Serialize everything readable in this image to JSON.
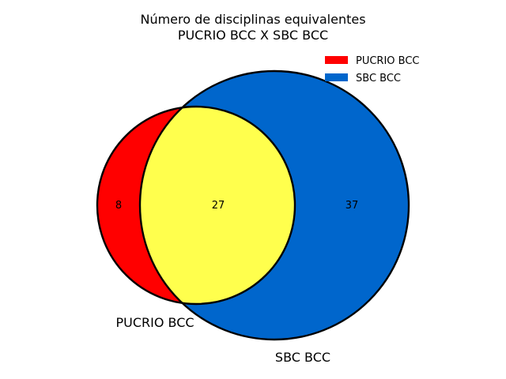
{
  "title": {
    "line1": "Número de disciplinas equivalentes",
    "line2": "PUCRIO BCC X SBC BCC"
  },
  "colors": {
    "set_a": "#ff0000",
    "set_b": "#0066cc",
    "intersection": "#ffff4d",
    "outline": "#000000"
  },
  "sets": [
    {
      "name": "PUCRIO BCC",
      "color": "#ff0000",
      "only_count": "8"
    },
    {
      "name": "SBC BCC",
      "color": "#0066cc",
      "only_count": "37"
    }
  ],
  "intersection_count": "27",
  "legend": {
    "placement": "top-right",
    "items": [
      {
        "label": "PUCRIO BCC",
        "color": "#ff0000"
      },
      {
        "label": "SBC BCC",
        "color": "#0066cc"
      }
    ]
  },
  "set_labels": {
    "a": "PUCRIO BCC",
    "b": "SBC BCC"
  },
  "chart_data": {
    "type": "venn",
    "sets": [
      "PUCRIO BCC",
      "SBC BCC"
    ],
    "values": {
      "PUCRIO BCC only": 8,
      "PUCRIO BCC & SBC BCC": 27,
      "SBC BCC only": 37
    },
    "title": "Número de disciplinas equivalentes\nPUCRIO BCC X SBC BCC",
    "legend_placement": "top-right"
  }
}
